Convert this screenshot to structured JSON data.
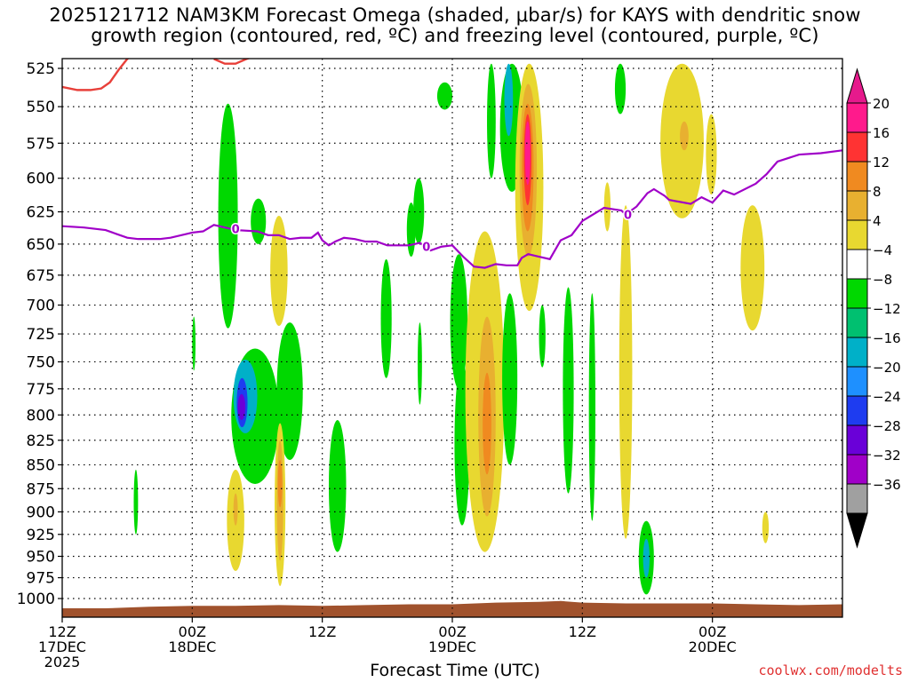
{
  "header": {
    "title_line1": "2025121712 NAM3KM Forecast Omega (shaded, μbar/s) for KAYS with dendritic snow",
    "title_line2": "growth region (contoured, red, ºC) and freezing level (contoured, purple, ºC)"
  },
  "footer": {
    "x_axis_title": "Forecast Time (UTC)",
    "credit": "coolwx.com/modelts"
  },
  "chart_data": {
    "type": "heatmap",
    "y_axis": {
      "levels": [
        525,
        550,
        575,
        600,
        625,
        650,
        675,
        700,
        725,
        750,
        775,
        800,
        825,
        850,
        875,
        900,
        925,
        950,
        975,
        1000
      ],
      "scale": "log-pressure (hPa)"
    },
    "x_axis": {
      "range_hours": [
        0,
        36
      ],
      "ticks": [
        {
          "h": 0,
          "l1": "12Z",
          "l2": "17DEC",
          "l3": "2025"
        },
        {
          "h": 6,
          "l1": "00Z",
          "l2": "18DEC",
          "l3": ""
        },
        {
          "h": 12,
          "l1": "12Z",
          "l2": "",
          "l3": ""
        },
        {
          "h": 18,
          "l1": "00Z",
          "l2": "19DEC",
          "l3": ""
        },
        {
          "h": 24,
          "l1": "12Z",
          "l2": "",
          "l3": ""
        },
        {
          "h": 30,
          "l1": "00Z",
          "l2": "20DEC",
          "l3": ""
        }
      ]
    },
    "grid": true,
    "colorbar": {
      "labels": [
        "20",
        "16",
        "12",
        "8",
        "4",
        "−4",
        "−8",
        "−12",
        "−16",
        "−20",
        "−24",
        "−28",
        "−32",
        "−36"
      ],
      "colors": [
        "#ff1a8c",
        "#ff3333",
        "#f08a20",
        "#e8b030",
        "#e8d830",
        "#ffffff",
        "#00d800",
        "#00c070",
        "#00b0c8",
        "#1e90ff",
        "#1e3cf0",
        "#6a00d8",
        "#a000c8",
        "#a0a0a0"
      ],
      "bottom_color": "#000000",
      "top_color": "#e61a8c"
    },
    "freezing_level": {
      "label": "0",
      "color": "#a000c8",
      "points": [
        [
          0,
          636
        ],
        [
          1,
          637
        ],
        [
          2,
          639
        ],
        [
          2.5,
          642
        ],
        [
          3,
          645
        ],
        [
          3.5,
          646
        ],
        [
          4.5,
          646
        ],
        [
          5,
          645
        ],
        [
          6,
          641
        ],
        [
          6.5,
          640
        ],
        [
          7,
          635
        ],
        [
          7.5,
          637
        ],
        [
          8,
          639
        ],
        [
          9,
          640
        ],
        [
          9.5,
          643
        ],
        [
          10,
          643
        ],
        [
          10.5,
          646
        ],
        [
          11,
          645
        ],
        [
          11.5,
          645
        ],
        [
          11.8,
          641
        ],
        [
          12,
          647
        ],
        [
          12.3,
          651
        ],
        [
          12.6,
          648
        ],
        [
          13,
          645
        ],
        [
          13.5,
          646
        ],
        [
          14,
          648
        ],
        [
          14.5,
          648
        ],
        [
          15,
          651
        ],
        [
          15.5,
          651
        ],
        [
          16,
          651
        ],
        [
          16.5,
          649
        ],
        [
          17,
          655
        ],
        [
          17.5,
          652
        ],
        [
          18,
          651
        ],
        [
          18.5,
          660
        ],
        [
          19,
          668
        ],
        [
          19.5,
          669
        ],
        [
          20,
          666
        ],
        [
          20.5,
          667
        ],
        [
          21,
          667
        ],
        [
          21.2,
          661
        ],
        [
          21.5,
          658
        ],
        [
          22,
          660
        ],
        [
          22.5,
          662
        ],
        [
          23,
          647
        ],
        [
          23.5,
          643
        ],
        [
          24,
          632
        ],
        [
          25,
          622
        ],
        [
          25.8,
          624
        ],
        [
          26,
          627
        ],
        [
          26.5,
          621
        ],
        [
          27,
          611
        ],
        [
          27.3,
          608
        ],
        [
          27.8,
          613
        ],
        [
          28,
          616
        ],
        [
          29,
          619
        ],
        [
          29.5,
          614
        ],
        [
          30,
          618
        ],
        [
          30.5,
          609
        ],
        [
          31,
          612
        ],
        [
          32,
          604
        ],
        [
          32.5,
          597
        ],
        [
          33,
          588
        ],
        [
          34,
          583
        ],
        [
          35,
          582
        ],
        [
          36,
          580
        ]
      ]
    },
    "dgz_contour": {
      "label": "",
      "color": "#e8403a",
      "points": [
        [
          0,
          537
        ],
        [
          0.7,
          539
        ],
        [
          1.3,
          539
        ],
        [
          1.8,
          538
        ],
        [
          2.2,
          534
        ],
        [
          2.6,
          526
        ],
        [
          3.0,
          519
        ],
        [
          3.3,
          516
        ]
      ]
    },
    "omega_regions": [
      {
        "color": "#00d800",
        "h0": 7.2,
        "h1": 8.1,
        "p0": 548,
        "p1": 720
      },
      {
        "color": "#00d800",
        "h0": 7.8,
        "h1": 10.0,
        "p0": 738,
        "p1": 870
      },
      {
        "color": "#00b0c8",
        "h0": 7.9,
        "h1": 9.0,
        "p0": 748,
        "p1": 818
      },
      {
        "color": "#1e3cf0",
        "h0": 8.05,
        "h1": 8.55,
        "p0": 765,
        "p1": 812
      },
      {
        "color": "#6a00d8",
        "h0": 8.1,
        "h1": 8.45,
        "p0": 780,
        "p1": 805
      },
      {
        "color": "#00d800",
        "h0": 8.7,
        "h1": 9.4,
        "p0": 615,
        "p1": 650
      },
      {
        "color": "#e8d830",
        "h0": 9.6,
        "h1": 10.4,
        "p0": 628,
        "p1": 718
      },
      {
        "color": "#00d800",
        "h0": 9.9,
        "h1": 11.1,
        "p0": 715,
        "p1": 845
      },
      {
        "color": "#e8d830",
        "h0": 9.8,
        "h1": 10.3,
        "p0": 808,
        "p1": 985
      },
      {
        "color": "#e8b030",
        "h0": 9.9,
        "h1": 10.2,
        "p0": 825,
        "p1": 955
      },
      {
        "color": "#f08a20",
        "h0": 9.95,
        "h1": 10.15,
        "p0": 845,
        "p1": 895
      },
      {
        "color": "#e8d830",
        "h0": 7.6,
        "h1": 8.4,
        "p0": 855,
        "p1": 967
      },
      {
        "color": "#e8b030",
        "h0": 7.9,
        "h1": 8.1,
        "p0": 880,
        "p1": 915
      },
      {
        "color": "#00d800",
        "h0": 12.3,
        "h1": 13.1,
        "p0": 805,
        "p1": 945
      },
      {
        "color": "#00d800",
        "h0": 14.7,
        "h1": 15.2,
        "p0": 662,
        "p1": 765
      },
      {
        "color": "#00d800",
        "h0": 15.9,
        "h1": 16.3,
        "p0": 618,
        "p1": 660
      },
      {
        "color": "#00d800",
        "h0": 16.2,
        "h1": 16.7,
        "p0": 600,
        "p1": 650
      },
      {
        "color": "#00d800",
        "h0": 3.3,
        "h1": 3.5,
        "p0": 855,
        "p1": 925
      },
      {
        "color": "#00d800",
        "h0": 6.0,
        "h1": 6.15,
        "p0": 710,
        "p1": 758
      },
      {
        "color": "#00d800",
        "h0": 16.4,
        "h1": 16.6,
        "p0": 715,
        "p1": 790
      },
      {
        "color": "#00d800",
        "h0": 17.3,
        "h1": 18.0,
        "p0": 534,
        "p1": 552
      },
      {
        "color": "#00d800",
        "h0": 17.9,
        "h1": 18.7,
        "p0": 658,
        "p1": 775
      },
      {
        "color": "#00d800",
        "h0": 18.1,
        "h1": 18.8,
        "p0": 750,
        "p1": 915
      },
      {
        "color": "#e8d830",
        "h0": 18.6,
        "h1": 20.4,
        "p0": 640,
        "p1": 945
      },
      {
        "color": "#e8b030",
        "h0": 19.2,
        "h1": 20.0,
        "p0": 710,
        "p1": 905
      },
      {
        "color": "#f08a20",
        "h0": 19.4,
        "h1": 19.8,
        "p0": 760,
        "p1": 860
      },
      {
        "color": "#00d800",
        "h0": 20.3,
        "h1": 21.0,
        "p0": 690,
        "p1": 850
      },
      {
        "color": "#00d800",
        "h0": 19.6,
        "h1": 20.0,
        "p0": 522,
        "p1": 600
      },
      {
        "color": "#00d800",
        "h0": 20.2,
        "h1": 21.3,
        "p0": 522,
        "p1": 610
      },
      {
        "color": "#00b0c8",
        "h0": 20.4,
        "h1": 20.8,
        "p0": 522,
        "p1": 570
      },
      {
        "color": "#e8d830",
        "h0": 20.9,
        "h1": 22.2,
        "p0": 522,
        "p1": 705
      },
      {
        "color": "#e8b030",
        "h0": 21.1,
        "h1": 21.9,
        "p0": 535,
        "p1": 660
      },
      {
        "color": "#f08a20",
        "h0": 21.2,
        "h1": 21.75,
        "p0": 548,
        "p1": 640
      },
      {
        "color": "#ff3333",
        "h0": 21.3,
        "h1": 21.65,
        "p0": 555,
        "p1": 620
      },
      {
        "color": "#ff1a8c",
        "h0": 21.35,
        "h1": 21.6,
        "p0": 560,
        "p1": 605
      },
      {
        "color": "#00d800",
        "h0": 22.0,
        "h1": 22.3,
        "p0": 700,
        "p1": 755
      },
      {
        "color": "#00d800",
        "h0": 23.1,
        "h1": 23.6,
        "p0": 685,
        "p1": 880
      },
      {
        "color": "#00d800",
        "h0": 24.3,
        "h1": 24.6,
        "p0": 690,
        "p1": 910
      },
      {
        "color": "#00d800",
        "h0": 25.5,
        "h1": 26.0,
        "p0": 522,
        "p1": 555
      },
      {
        "color": "#e8d830",
        "h0": 25.7,
        "h1": 26.3,
        "p0": 620,
        "p1": 930
      },
      {
        "color": "#e8d830",
        "h0": 25.0,
        "h1": 25.3,
        "p0": 603,
        "p1": 640
      },
      {
        "color": "#00d800",
        "h0": 26.6,
        "h1": 27.3,
        "p0": 910,
        "p1": 995
      },
      {
        "color": "#00b0c8",
        "h0": 26.8,
        "h1": 27.1,
        "p0": 930,
        "p1": 975
      },
      {
        "color": "#e8d830",
        "h0": 27.6,
        "h1": 29.6,
        "p0": 522,
        "p1": 630
      },
      {
        "color": "#e8b030",
        "h0": 28.5,
        "h1": 28.9,
        "p0": 560,
        "p1": 580
      },
      {
        "color": "#e8d830",
        "h0": 29.7,
        "h1": 30.2,
        "p0": 555,
        "p1": 612
      },
      {
        "color": "#e8d830",
        "h0": 31.3,
        "h1": 32.4,
        "p0": 620,
        "p1": 722
      },
      {
        "color": "#e8d830",
        "h0": 32.3,
        "h1": 32.6,
        "p0": 900,
        "p1": 935
      }
    ],
    "terrain": {
      "color": "#a0522d",
      "surface_pressure": [
        [
          0,
          1012
        ],
        [
          2,
          1012
        ],
        [
          4,
          1010
        ],
        [
          6,
          1009
        ],
        [
          8,
          1009
        ],
        [
          10,
          1008
        ],
        [
          12,
          1009
        ],
        [
          14,
          1008
        ],
        [
          16,
          1007
        ],
        [
          18,
          1007
        ],
        [
          20,
          1005
        ],
        [
          22,
          1004
        ],
        [
          23,
          1003
        ],
        [
          24,
          1005
        ],
        [
          26,
          1006
        ],
        [
          28,
          1006
        ],
        [
          30,
          1006
        ],
        [
          32,
          1007
        ],
        [
          34,
          1008
        ],
        [
          36,
          1007
        ]
      ]
    }
  }
}
